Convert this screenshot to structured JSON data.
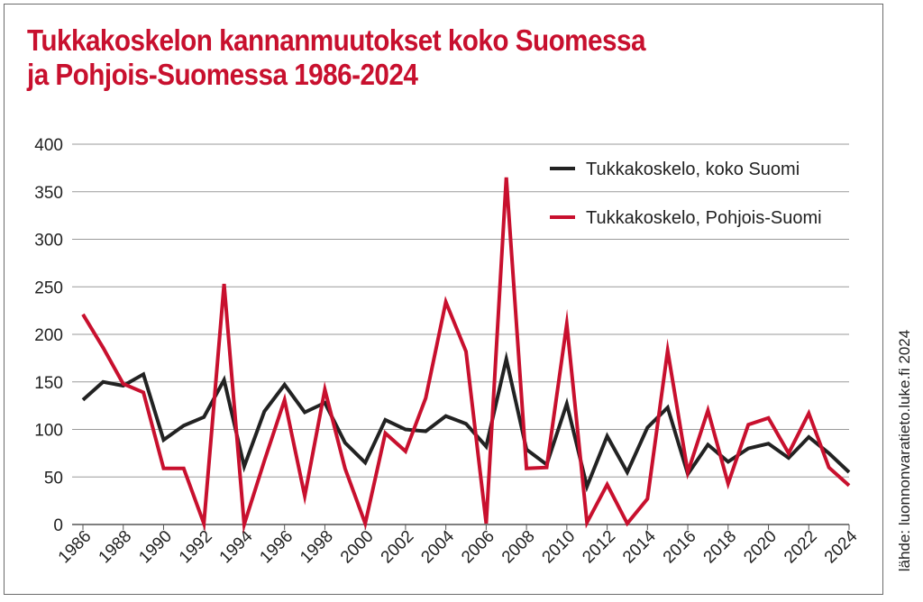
{
  "title_line1": "Tukkakoskelon kannanmuutokset koko Suomessa",
  "title_line2": "ja Pohjois-Suomessa 1986-2024",
  "source": "lähde: luonnonvaratieto.luke.fi 2024",
  "colors": {
    "title": "#c8102e",
    "koko_suomi": "#222222",
    "pohjois_suomi": "#c8102e"
  },
  "chart_data": {
    "type": "line",
    "title": "Tukkakoskelon kannanmuutokset koko Suomessa ja Pohjois-Suomessa 1986-2024",
    "xlabel": "",
    "ylabel": "",
    "ylim": [
      0,
      400
    ],
    "yticks": [
      0,
      50,
      100,
      150,
      200,
      250,
      300,
      350,
      400
    ],
    "xticks": [
      1986,
      1988,
      1990,
      1992,
      1994,
      1996,
      1998,
      2000,
      2002,
      2004,
      2006,
      2008,
      2010,
      2012,
      2014,
      2016,
      2018,
      2020,
      2022,
      2024
    ],
    "grid": true,
    "legend_position": "top-right",
    "x": [
      1986,
      1987,
      1988,
      1989,
      1990,
      1991,
      1992,
      1993,
      1994,
      1995,
      1996,
      1997,
      1998,
      1999,
      2000,
      2001,
      2002,
      2003,
      2004,
      2005,
      2006,
      2007,
      2008,
      2009,
      2010,
      2011,
      2012,
      2013,
      2014,
      2015,
      2016,
      2017,
      2018,
      2019,
      2020,
      2021,
      2022,
      2023,
      2024
    ],
    "series": [
      {
        "name": "Tukkakoskelo, koko Suomi",
        "color": "#222222",
        "values": [
          131,
          150,
          146,
          158,
          89,
          104,
          113,
          152,
          61,
          119,
          147,
          118,
          128,
          86,
          65,
          110,
          100,
          98,
          114,
          106,
          82,
          174,
          79,
          63,
          127,
          40,
          93,
          55,
          102,
          123,
          53,
          84,
          66,
          80,
          85,
          70,
          92,
          75,
          55
        ]
      },
      {
        "name": "Tukkakoskelo, Pohjois-Suomi",
        "color": "#c8102e",
        "values": [
          221,
          186,
          148,
          139,
          59,
          59,
          1,
          253,
          0,
          67,
          131,
          30,
          142,
          59,
          1,
          96,
          77,
          133,
          234,
          182,
          1,
          365,
          59,
          60,
          211,
          2,
          42,
          1,
          27,
          183,
          55,
          120,
          43,
          105,
          112,
          75,
          117,
          60,
          41
        ]
      }
    ]
  }
}
